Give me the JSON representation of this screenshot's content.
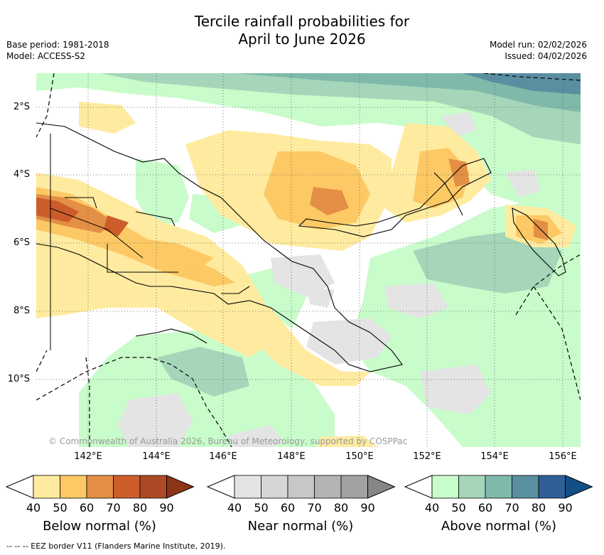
{
  "title_line1": "Tercile rainfall probabilities for",
  "title_line2": "April to June 2026",
  "base_period": "Base period: 1981-2018",
  "model": "Model: ACCESS-S2",
  "model_run": "Model run: 02/02/2026",
  "issued": "Issued: 04/02/2026",
  "copyright": "© Commonwealth of Australia 2026, Bureau of Meteorology, supported by COSPPac",
  "lat_labels": [
    "2°S",
    "4°S",
    "6°S",
    "8°S",
    "10°S"
  ],
  "lon_labels": [
    "142°E",
    "144°E",
    "146°E",
    "148°E",
    "150°E",
    "152°E",
    "154°E",
    "156°E"
  ],
  "colorbars": [
    {
      "label": "Below normal (%)",
      "ticks": [
        "40",
        "50",
        "60",
        "70",
        "80",
        "90"
      ],
      "colors": [
        "#ffeba0",
        "#fdc964",
        "#e38f45",
        "#cc5d2b",
        "#ad4a25",
        "#8e3418"
      ]
    },
    {
      "label": "Near normal (%)",
      "ticks": [
        "40",
        "50",
        "60",
        "70",
        "80",
        "90"
      ],
      "colors": [
        "#e4e4e4",
        "#d6d6d6",
        "#c7c7c7",
        "#b4b4b4",
        "#a2a2a2",
        "#868686"
      ]
    },
    {
      "label": "Above normal (%)",
      "ticks": [
        "40",
        "50",
        "60",
        "70",
        "80",
        "90"
      ],
      "colors": [
        "#c9fccb",
        "#a5d6b9",
        "#7fb9aa",
        "#5a8fa2",
        "#2f5f96",
        "#124f86"
      ]
    }
  ],
  "footnote": "--  --  -- EEZ border V11 (Flanders Marine Institute, 2019)."
}
